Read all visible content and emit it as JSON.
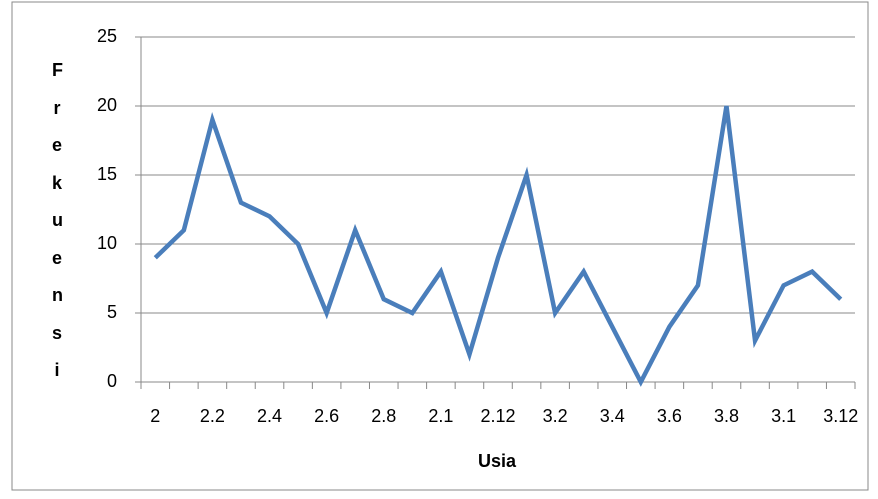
{
  "chart_data": {
    "type": "line",
    "x_label": "Usia",
    "y_label": "Frekuensi",
    "categories": [
      "2",
      null,
      "2.2",
      null,
      "2.4",
      null,
      "2.6",
      null,
      "2.8",
      null,
      "2.1",
      null,
      "2.12",
      null,
      "3.2",
      null,
      "3.4",
      null,
      "3.6",
      null,
      "3.8",
      null,
      "3.1",
      null,
      "3.12"
    ],
    "series": [
      {
        "name": "Frekuensi",
        "color": "#4a7ebb",
        "values": [
          9,
          11,
          19,
          13,
          12,
          10,
          5,
          11,
          6,
          5,
          8,
          2,
          9,
          15,
          5,
          8,
          4,
          0,
          4,
          7,
          20,
          3,
          7,
          8,
          6
        ]
      }
    ],
    "ylim": [
      0,
      25
    ],
    "yticks": [
      0,
      5,
      10,
      15,
      20,
      25
    ],
    "grid": true
  }
}
